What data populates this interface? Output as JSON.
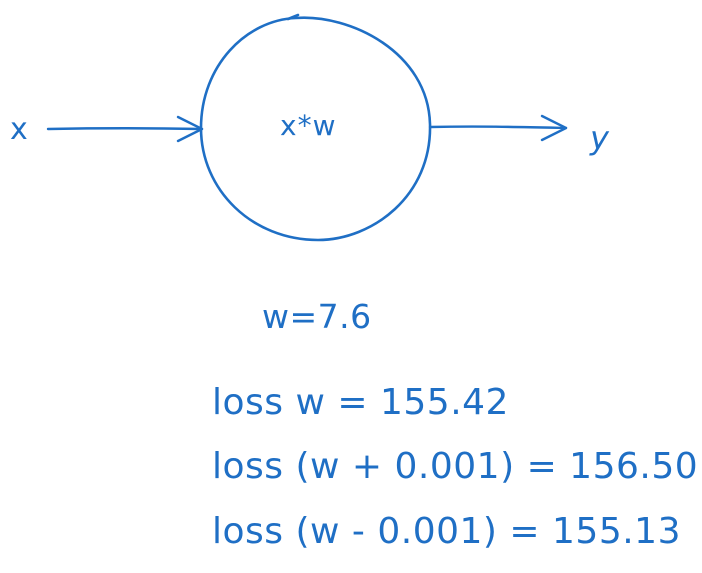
{
  "colors": {
    "stroke": "#1f6fc5",
    "background": "#ffffff"
  },
  "diagram": {
    "input_label": "x",
    "node_label": "x*w",
    "output_label": "y"
  },
  "notes": {
    "weight": "w=7.6",
    "loss_lines": [
      "loss w = 155.42",
      "loss (w + 0.001) = 156.50",
      "loss (w - 0.001) = 155.13"
    ]
  }
}
